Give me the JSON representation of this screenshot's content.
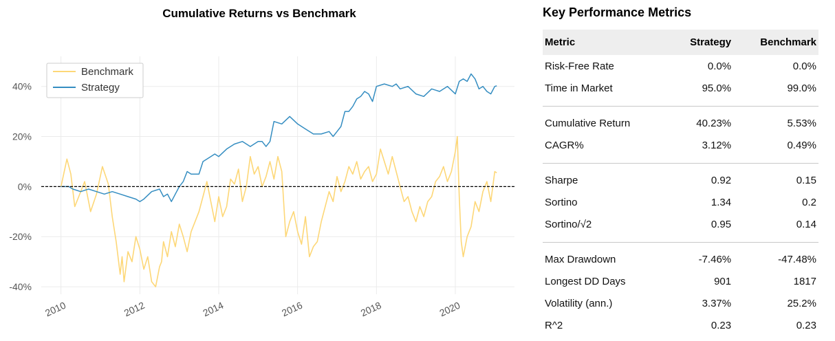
{
  "chart_data": {
    "type": "line",
    "title": "Cumulative Returns vs Benchmark",
    "xlabel": "",
    "ylabel": "",
    "x_ticks": [
      "2010",
      "2012",
      "2014",
      "2016",
      "2018",
      "2020"
    ],
    "y_ticks": [
      "40%",
      "20%",
      "0%",
      "-20%",
      "-40%"
    ],
    "xlim": [
      2009.5,
      2021.5
    ],
    "ylim": [
      -43,
      52
    ],
    "grid": true,
    "legend_position": "top-left",
    "baseline": 0,
    "series": [
      {
        "name": "Benchmark",
        "color": "#fdd777",
        "x": [
          2010.0,
          2010.15,
          2010.25,
          2010.35,
          2010.45,
          2010.6,
          2010.75,
          2010.9,
          2011.05,
          2011.2,
          2011.3,
          2011.4,
          2011.5,
          2011.55,
          2011.6,
          2011.7,
          2011.8,
          2011.9,
          2012.0,
          2012.1,
          2012.2,
          2012.3,
          2012.4,
          2012.5,
          2012.55,
          2012.6,
          2012.7,
          2012.8,
          2012.9,
          2013.0,
          2013.1,
          2013.2,
          2013.3,
          2013.4,
          2013.5,
          2013.6,
          2013.7,
          2013.8,
          2013.9,
          2014.0,
          2014.1,
          2014.2,
          2014.3,
          2014.4,
          2014.5,
          2014.6,
          2014.7,
          2014.8,
          2014.9,
          2015.0,
          2015.1,
          2015.2,
          2015.3,
          2015.4,
          2015.5,
          2015.6,
          2015.7,
          2015.8,
          2015.9,
          2016.0,
          2016.1,
          2016.2,
          2016.3,
          2016.4,
          2016.5,
          2016.6,
          2016.7,
          2016.8,
          2016.9,
          2017.0,
          2017.1,
          2017.2,
          2017.3,
          2017.4,
          2017.5,
          2017.6,
          2017.7,
          2017.8,
          2017.9,
          2018.0,
          2018.1,
          2018.2,
          2018.3,
          2018.4,
          2018.5,
          2018.6,
          2018.7,
          2018.8,
          2018.9,
          2019.0,
          2019.1,
          2019.2,
          2019.3,
          2019.4,
          2019.5,
          2019.6,
          2019.7,
          2019.8,
          2019.9,
          2020.0,
          2020.05,
          2020.1,
          2020.15,
          2020.2,
          2020.3,
          2020.4,
          2020.5,
          2020.6,
          2020.7,
          2020.8,
          2020.9,
          2021.0,
          2021.05
        ],
        "y": [
          0,
          11,
          5,
          -8,
          -4,
          2,
          -10,
          -3,
          8,
          1,
          -12,
          -22,
          -35,
          -28,
          -38,
          -26,
          -30,
          -20,
          -25,
          -33,
          -28,
          -38,
          -40,
          -32,
          -30,
          -22,
          -28,
          -18,
          -24,
          -15,
          -20,
          -26,
          -18,
          -14,
          -10,
          -4,
          2,
          -6,
          -14,
          -4,
          -12,
          -8,
          3,
          1,
          7,
          -6,
          0,
          12,
          5,
          8,
          0,
          4,
          10,
          3,
          12,
          6,
          -20,
          -14,
          -10,
          -18,
          -23,
          -12,
          -28,
          -24,
          -22,
          -14,
          -8,
          -2,
          -6,
          4,
          -2,
          2,
          8,
          5,
          10,
          3,
          6,
          8,
          2,
          5,
          15,
          10,
          5,
          12,
          6,
          0,
          -6,
          -4,
          -10,
          -14,
          -8,
          -12,
          -6,
          -4,
          2,
          4,
          8,
          2,
          6,
          14,
          20,
          -4,
          -22,
          -28,
          -20,
          -16,
          -6,
          -10,
          -2,
          2,
          -6,
          6,
          5.5
        ]
      },
      {
        "name": "Strategy",
        "color": "#348dc1",
        "x": [
          2010.0,
          2010.2,
          2010.3,
          2010.5,
          2010.7,
          2010.9,
          2011.1,
          2011.3,
          2011.5,
          2011.7,
          2011.9,
          2012.0,
          2012.1,
          2012.3,
          2012.5,
          2012.6,
          2012.7,
          2012.8,
          2012.9,
          2013.0,
          2013.1,
          2013.2,
          2013.3,
          2013.5,
          2013.6,
          2013.8,
          2013.9,
          2014.0,
          2014.2,
          2014.4,
          2014.6,
          2014.8,
          2015.0,
          2015.1,
          2015.2,
          2015.3,
          2015.4,
          2015.6,
          2015.8,
          2016.0,
          2016.2,
          2016.4,
          2016.6,
          2016.8,
          2016.9,
          2017.0,
          2017.1,
          2017.2,
          2017.3,
          2017.4,
          2017.5,
          2017.6,
          2017.7,
          2017.8,
          2017.9,
          2018.0,
          2018.2,
          2018.4,
          2018.5,
          2018.6,
          2018.8,
          2019.0,
          2019.2,
          2019.4,
          2019.6,
          2019.8,
          2020.0,
          2020.1,
          2020.2,
          2020.3,
          2020.4,
          2020.5,
          2020.6,
          2020.7,
          2020.8,
          2020.9,
          2021.0,
          2021.05
        ],
        "y": [
          0,
          0,
          -1,
          -2,
          -1,
          -2,
          -3,
          -2,
          -3,
          -4,
          -5,
          -6,
          -5,
          -2,
          -1,
          -4,
          -3,
          -6,
          -3,
          0,
          2,
          6,
          5,
          5,
          10,
          12,
          13,
          12,
          15,
          17,
          18,
          16,
          18,
          18,
          16,
          18,
          26,
          25,
          28,
          25,
          23,
          21,
          21,
          22,
          20,
          22,
          24,
          30,
          30,
          32,
          35,
          36,
          38,
          37,
          34,
          40,
          41,
          40,
          41,
          39,
          40,
          37,
          36,
          39,
          38,
          40,
          37,
          42,
          43,
          42,
          45,
          43,
          39,
          40,
          38,
          37,
          40,
          40.23
        ]
      }
    ]
  },
  "metrics": {
    "title": "Key Performance Metrics",
    "headers": [
      "Metric",
      "Strategy",
      "Benchmark"
    ],
    "groups": [
      [
        {
          "label": "Risk-Free Rate",
          "strategy": "0.0%",
          "benchmark": "0.0%"
        },
        {
          "label": "Time in Market",
          "strategy": "95.0%",
          "benchmark": "99.0%"
        }
      ],
      [
        {
          "label": "Cumulative Return",
          "strategy": "40.23%",
          "benchmark": "5.53%"
        },
        {
          "label": "CAGR%",
          "strategy": "3.12%",
          "benchmark": "0.49%"
        }
      ],
      [
        {
          "label": "Sharpe",
          "strategy": "0.92",
          "benchmark": "0.15"
        },
        {
          "label": "Sortino",
          "strategy": "1.34",
          "benchmark": "0.2"
        },
        {
          "label": "Sortino/√2",
          "strategy": "0.95",
          "benchmark": "0.14"
        }
      ],
      [
        {
          "label": "Max Drawdown",
          "strategy": "-7.46%",
          "benchmark": "-47.48%"
        },
        {
          "label": "Longest DD Days",
          "strategy": "901",
          "benchmark": "1817"
        },
        {
          "label": "Volatility (ann.)",
          "strategy": "3.37%",
          "benchmark": "25.2%"
        },
        {
          "label": "R^2",
          "strategy": "0.23",
          "benchmark": "0.23"
        }
      ]
    ]
  }
}
